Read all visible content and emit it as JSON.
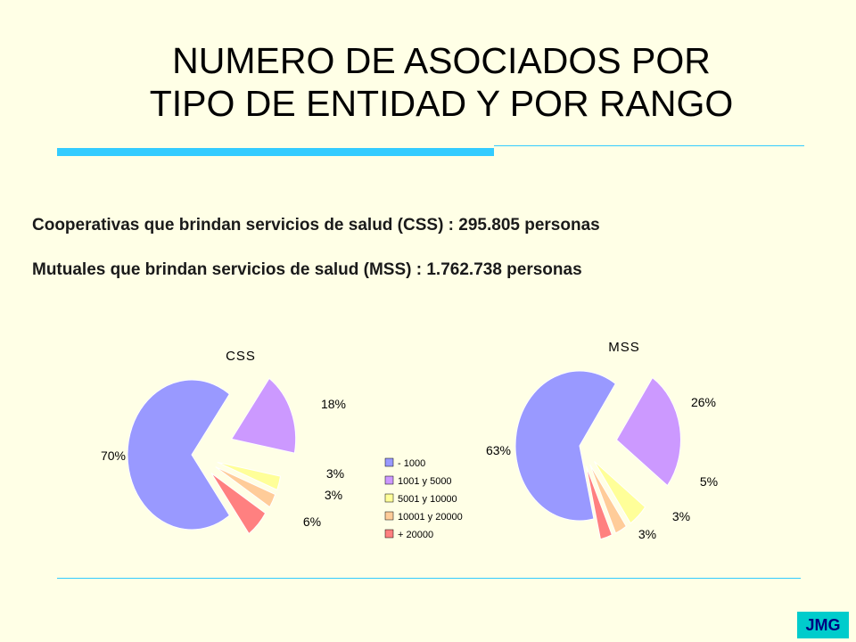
{
  "title_line1": "NUMERO DE ASOCIADOS POR",
  "title_line2": "TIPO DE ENTIDAD Y POR RANGO",
  "info_css": "Cooperativas que brindan servicios de salud (CSS) : 295.805 personas",
  "info_mss": "Mutuales que brindan servicios de salud (MSS) : 1.762.738 personas",
  "badge": "JMG",
  "colors": {
    "background": "#FFFFE6",
    "accent": "#33CCFF",
    "badge": "#00CCCC",
    "badge_text": "#000080"
  },
  "chart_data": [
    {
      "type": "pie",
      "title": "CSS",
      "categories": [
        "- 1000",
        "1001 y 5000",
        "5001 y 10000",
        "10001 y 20000",
        "+ 20000"
      ],
      "values": [
        70,
        18,
        3,
        3,
        6
      ],
      "labels": [
        "70%",
        "18%",
        "3%",
        "3%",
        "6%"
      ],
      "colors": [
        "#9999FF",
        "#CC99FF",
        "#FFFF99",
        "#FFCC99",
        "#FF8080"
      ],
      "exploded": true
    },
    {
      "type": "pie",
      "title": "MSS",
      "categories": [
        "- 1000",
        "1001 y 5000",
        "5001 y 10000",
        "10001 y 20000",
        "+ 20000"
      ],
      "values": [
        63,
        26,
        5,
        3,
        3
      ],
      "labels": [
        "63%",
        "26%",
        "5%",
        "3%",
        "3%"
      ],
      "colors": [
        "#9999FF",
        "#CC99FF",
        "#FFFF99",
        "#FFCC99",
        "#FF8080"
      ],
      "exploded": true
    }
  ],
  "legend": {
    "entries": [
      "- 1000",
      "1001 y 5000",
      "5001 y 10000",
      "10001 y 20000",
      "+ 20000"
    ],
    "colors": [
      "#9999FF",
      "#CC99FF",
      "#FFFF99",
      "#FFCC99",
      "#FF8080"
    ]
  }
}
